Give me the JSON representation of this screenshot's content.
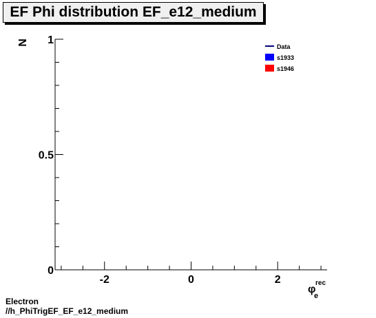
{
  "title": "EF Phi distribution EF_e12_medium",
  "footer": {
    "line1": "Electron",
    "line2": "//h_PhiTrigEF_EF_e12_medium"
  },
  "chart_data": {
    "type": "line",
    "title": "EF Phi distribution EF_e12_medium",
    "ylabel": "N",
    "xlabel_main": "φ",
    "xlabel_sup": "rec",
    "xlabel_sub": "e",
    "xlim": [
      -3.14159,
      3.14159
    ],
    "ylim": [
      0,
      1
    ],
    "xticks": [
      -2,
      0,
      2
    ],
    "xtick_labels": [
      "-2",
      "0",
      "2"
    ],
    "yticks": [
      0,
      0.5,
      1
    ],
    "ytick_labels": [
      "0",
      "0.5",
      "1"
    ],
    "grid": false,
    "legend_position": "top-right",
    "series": [
      {
        "name": "Data",
        "color": "#000080",
        "style": "line",
        "values": []
      },
      {
        "name": "s1933",
        "color": "#0000ff",
        "style": "fill",
        "values": []
      },
      {
        "name": "s1946",
        "color": "#ff0000",
        "style": "fill",
        "values": []
      }
    ]
  }
}
